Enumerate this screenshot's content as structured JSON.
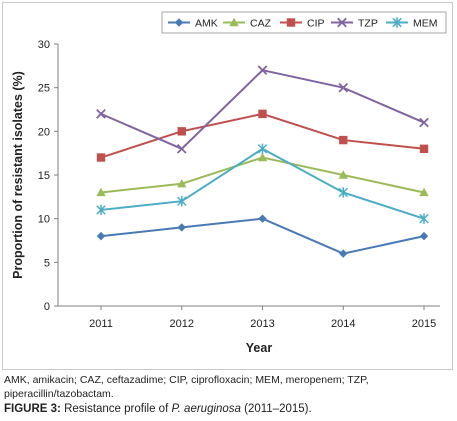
{
  "chart_data": {
    "type": "line",
    "x": [
      "2011",
      "2012",
      "2013",
      "2014",
      "2015"
    ],
    "xlabel": "Year",
    "ylabel": "Proportion of resistant isolates (%)",
    "ylim": [
      0,
      30
    ],
    "yticks": [
      0,
      5,
      10,
      15,
      20,
      25,
      30
    ],
    "grid": false,
    "legend": "top-right",
    "series": [
      {
        "name": "AMK",
        "color": "#4a7ab5",
        "marker": "diamond",
        "values": [
          8,
          9,
          10,
          6,
          8
        ]
      },
      {
        "name": "CAZ",
        "color": "#9bbb59",
        "marker": "triangle",
        "values": [
          13,
          14,
          17,
          15,
          13
        ]
      },
      {
        "name": "CIP",
        "color": "#c0504d",
        "marker": "square",
        "values": [
          17,
          20,
          22,
          19,
          18
        ]
      },
      {
        "name": "TZP",
        "color": "#8064a2",
        "marker": "x",
        "values": [
          22,
          18,
          27,
          25,
          21
        ]
      },
      {
        "name": "MEM",
        "color": "#4bacc6",
        "marker": "asterisk",
        "values": [
          11,
          12,
          18,
          13,
          10
        ]
      }
    ]
  },
  "footnote": "AMK, amikacin; CAZ, ceftazadime; CIP, ciprofloxacin; MEM, meropenem; TZP, piperacillin/tazobactam.",
  "caption": {
    "label": "FIGURE 3:",
    "text_before": " Resistance profile of ",
    "species": "P. aeruginosa",
    "text_after": " (2011–2015)."
  }
}
